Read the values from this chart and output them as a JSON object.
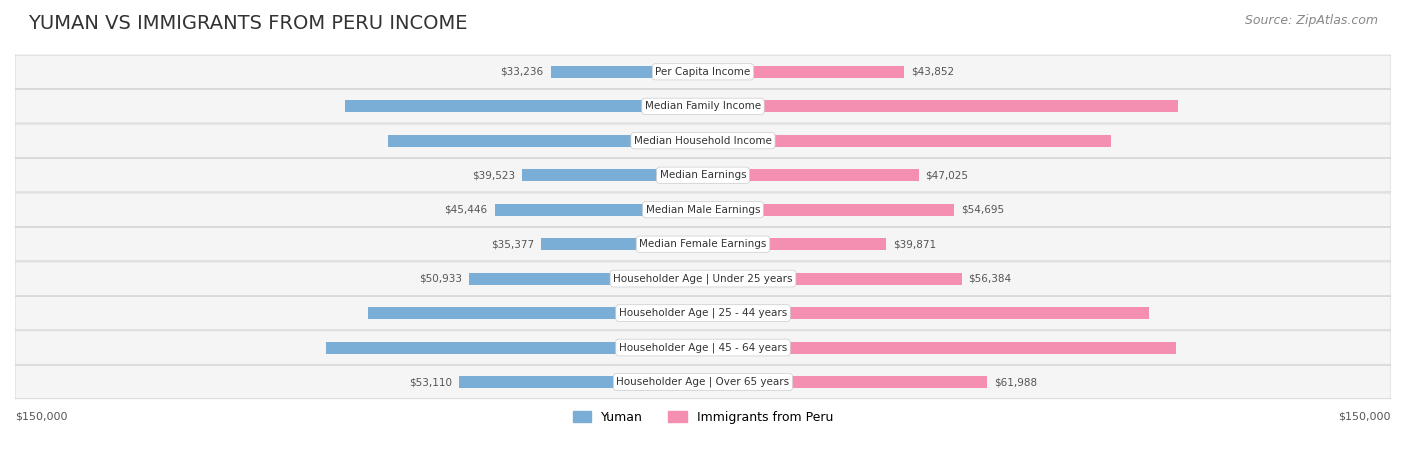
{
  "title": "YUMAN VS IMMIGRANTS FROM PERU INCOME",
  "source": "Source: ZipAtlas.com",
  "categories": [
    "Per Capita Income",
    "Median Family Income",
    "Median Household Income",
    "Median Earnings",
    "Median Male Earnings",
    "Median Female Earnings",
    "Householder Age | Under 25 years",
    "Householder Age | 25 - 44 years",
    "Householder Age | 45 - 64 years",
    "Householder Age | Over 65 years"
  ],
  "yuman_values": [
    33236,
    78055,
    68743,
    39523,
    45446,
    35377,
    50933,
    72956,
    82139,
    53110
  ],
  "peru_values": [
    43852,
    103534,
    89010,
    47025,
    54695,
    39871,
    56384,
    97329,
    103173,
    61988
  ],
  "yuman_color": "#7aaed6",
  "peru_color": "#f48fb1",
  "yuman_color_dark": "#5b8fc7",
  "peru_color_dark": "#e91e8c",
  "label_bg": "#f0f0f0",
  "max_value": 150000,
  "legend_yuman": "Yuman",
  "legend_peru": "Immigrants from Peru",
  "xlabel_left": "$150,000",
  "xlabel_right": "$150,000",
  "background_color": "#ffffff",
  "row_bg_color": "#f5f5f5",
  "title_fontsize": 14,
  "source_fontsize": 9
}
